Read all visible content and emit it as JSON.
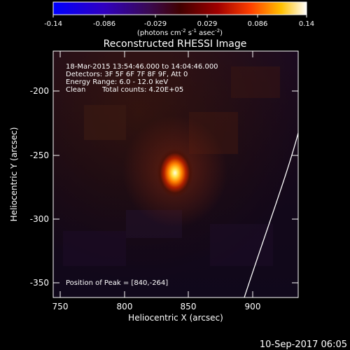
{
  "colorbar": {
    "ticks": [
      "-0.14",
      "-0.086",
      "-0.029",
      "0.029",
      "0.086",
      "0.14"
    ],
    "units_label": "(photons cm",
    "units_exp1": "-2",
    "units_mid1": " s",
    "units_exp2": "-1",
    "units_mid2": " asec",
    "units_exp3": "-2",
    "units_end": ")"
  },
  "title": "Reconstructed RHESSI Image",
  "annotations": {
    "time_range": "18-Mar-2015 13:54:46.000 to 14:04:46.000",
    "detectors": "Detectors: 3F 5F 6F 7F 8F 9F, Att 0",
    "energy": "Energy Range: 6.0 - 12.0 keV",
    "clean": "Clean",
    "total_counts": "Total counts: 4.20E+05",
    "peak": "Position of Peak = [840,-264]"
  },
  "axes": {
    "xlabel": "Heliocentric X (arcsec)",
    "ylabel": "Heliocentric Y (arcsec)",
    "xticks": [
      "750",
      "800",
      "850",
      "900"
    ],
    "yticks": [
      "-200",
      "-250",
      "-300",
      "-350"
    ]
  },
  "footer": {
    "timestamp": "10-Sep-2017 06:05"
  },
  "colors": {
    "background": "#000000",
    "frame": "#ffffff",
    "limb": "#ffffff"
  }
}
